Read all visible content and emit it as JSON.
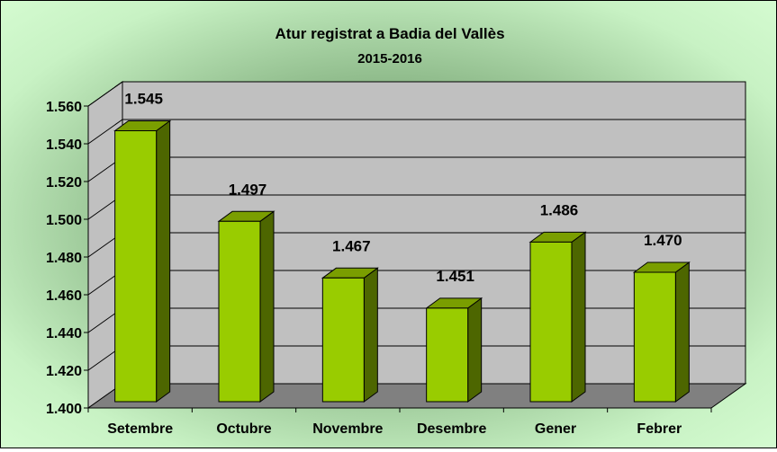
{
  "chart_data": {
    "type": "bar",
    "title": "Atur registrat a Badia del Vallès",
    "subtitle": "2015-2016",
    "categories": [
      "Setembre",
      "Octubre",
      "Novembre",
      "Desembre",
      "Gener",
      "Febrer"
    ],
    "values": [
      1545,
      1497,
      1467,
      1451,
      1486,
      1470
    ],
    "value_labels": [
      "1.545",
      "1.497",
      "1.467",
      "1.451",
      "1.486",
      "1.470"
    ],
    "y_ticks": [
      "1.400",
      "1.420",
      "1.440",
      "1.460",
      "1.480",
      "1.500",
      "1.520",
      "1.540",
      "1.560"
    ],
    "ylim": [
      1400,
      1560
    ],
    "grid": true,
    "legend": "none",
    "colors": {
      "bar_front": "#99cc00",
      "bar_side": "#4d6600",
      "bar_top": "#7a9e00",
      "wall": "#c0c0c0",
      "floor": "#808080"
    }
  }
}
